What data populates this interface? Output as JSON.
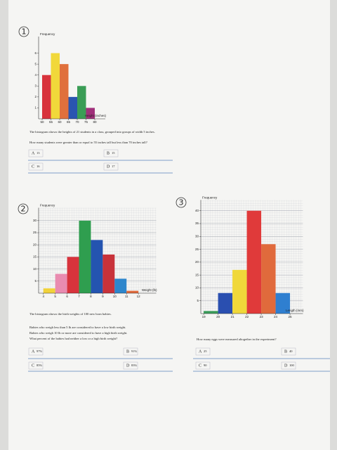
{
  "chart_data": [
    {
      "type": "histogram",
      "ylabel": "Frequency",
      "xlabel": "Height (inches)",
      "bins": [
        50,
        55,
        60,
        65,
        70,
        75,
        80
      ],
      "values": [
        4,
        6,
        5,
        2,
        3,
        1
      ],
      "colors": [
        "#d8333c",
        "#f1d83a",
        "#e0703c",
        "#2a55b0",
        "#3a9d55",
        "#a0307a"
      ],
      "xlim": [
        48,
        86
      ],
      "xticks": [
        50,
        55,
        60,
        65,
        70,
        75,
        80
      ],
      "ylim": [
        0,
        7
      ],
      "yticks": [
        1,
        2,
        3,
        4,
        5,
        6
      ],
      "grid": false
    },
    {
      "type": "histogram",
      "ylabel": "Frequency",
      "xlabel": "Weight (lb)",
      "bins": [
        4,
        5,
        6,
        7,
        8,
        9,
        10,
        11,
        12
      ],
      "values": [
        2,
        8,
        15,
        30,
        22,
        16,
        6,
        1
      ],
      "colors": [
        "#f1d23a",
        "#e98bb0",
        "#d8333c",
        "#2f9e4f",
        "#2454b0",
        "#c8323a",
        "#2d86cc",
        "#e06b3c"
      ],
      "xlim": [
        3.6,
        13.5
      ],
      "xticks": [
        4,
        5,
        6,
        7,
        8,
        9,
        10,
        11,
        12
      ],
      "ylim": [
        0,
        33
      ],
      "yticks": [
        5,
        10,
        15,
        20,
        25,
        30
      ],
      "grid": true
    },
    {
      "type": "histogram",
      "ylabel": "Frequency",
      "xlabel": "Length (mm)",
      "bins": [
        19,
        20,
        21,
        22,
        23,
        24,
        25
      ],
      "values": [
        1,
        8,
        17,
        40,
        27,
        8
      ],
      "colors": [
        "#3a9d5a",
        "#2a4fb0",
        "#f0d83a",
        "#e03a3a",
        "#e06a3c",
        "#2f7fd0"
      ],
      "xlim": [
        18.8,
        25.9
      ],
      "xticks": [
        19,
        20,
        21,
        22,
        23,
        24,
        25
      ],
      "ylim": [
        0,
        42
      ],
      "yticks": [
        5,
        10,
        15,
        20,
        25,
        30,
        35,
        40
      ],
      "grid": true
    }
  ],
  "sections": [
    {
      "number": "1",
      "text": [
        "The histogram shows the heights of 21 students in a class, grouped into groups of width 5 inches.",
        "How many students were greater than or equal to 55 inches tall but less than 70 inches tall?"
      ],
      "options": [
        {
          "letter": "A",
          "answer": "13"
        },
        {
          "letter": "B",
          "answer": "15"
        },
        {
          "letter": "C",
          "answer": "16"
        },
        {
          "letter": "D",
          "answer": "17"
        }
      ]
    },
    {
      "number": "2",
      "text": [
        "The histogram shows the birth weights of 100 new born babies.",
        "Babies who weigh less than 5 lb are considered to have a low birth weight.",
        "Babies who weigh 10 lb or more are considered to have a high birth weight.",
        "What percent of the babies had neither a low or a high birth weight?"
      ],
      "options": [
        {
          "letter": "A",
          "answer": "97%"
        },
        {
          "letter": "B",
          "answer": "91%"
        },
        {
          "letter": "C",
          "answer": "85%"
        },
        {
          "letter": "D",
          "answer": "83%"
        }
      ]
    },
    {
      "number": "3",
      "text": [
        "How many eggs were measured altogether in the experiment?"
      ],
      "options": [
        {
          "letter": "A",
          "answer": "25"
        },
        {
          "letter": "B",
          "answer": "40"
        },
        {
          "letter": "C",
          "answer": "90"
        },
        {
          "letter": "D",
          "answer": "100"
        }
      ]
    }
  ]
}
